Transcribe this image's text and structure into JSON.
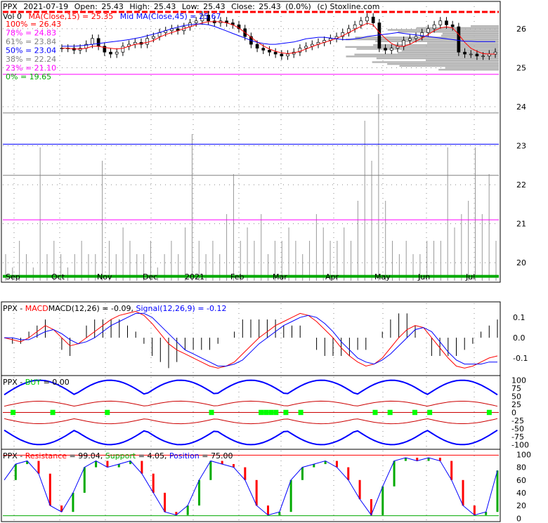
{
  "header": {
    "symbol": "PPX",
    "date": "2021-07-19",
    "open_label": "Open:",
    "open": "25.43",
    "high_label": "High:",
    "high": "25.43",
    "low_label": "Low:",
    "low": "25.43",
    "close_label": "Close:",
    "close": "25.43",
    "change": "(0.0%)",
    "copyright": "(c) Stoxline.com"
  },
  "legend": {
    "vol": "Vol 0",
    "ma_label": "MA(Close,15) = 25.35",
    "mid_ma_label": "Mid MA(Close,45) = 25.67"
  },
  "colors": {
    "background": "#ffffff",
    "price_candle": "#000000",
    "ma15": "#ff0000",
    "ma45": "#0000ff",
    "fib_100": "#ff0000",
    "fib_0": "#00aa00",
    "volume_profile": "#b4b4b4",
    "buy_signal": "#00ff00",
    "resistance": "#ff0000",
    "support": "#00aa00",
    "position": "#0000ff"
  },
  "chart_data": [
    {
      "type": "candlestick",
      "panel": "price",
      "ylim": [
        19.5,
        26.7
      ],
      "y_ticks": [
        20,
        21,
        22,
        23,
        24,
        25,
        26
      ],
      "x_tick_labels": [
        "Sep",
        "Oct",
        "Nov",
        "Dec",
        "2021",
        "Feb",
        "Mar",
        "Apr",
        "May",
        "Jun",
        "Jul"
      ],
      "fib_levels": [
        {
          "label": "100% = 26.43",
          "value": 26.43,
          "color": "#ff0000"
        },
        {
          "label": "78% = 24.83",
          "value": 24.83,
          "color": "#ff00ff"
        },
        {
          "label": "61% = 23.84",
          "value": 23.84,
          "color": "#808080"
        },
        {
          "label": "50% = 23.04",
          "value": 23.04,
          "color": "#0000ff"
        },
        {
          "label": "38% = 22.24",
          "value": 22.24,
          "color": "#808080"
        },
        {
          "label": "23% = 21.10",
          "value": 21.1,
          "color": "#ff00ff"
        },
        {
          "label": "0% = 19.65",
          "value": 19.65,
          "color": "#00aa00"
        }
      ],
      "close_series": [
        25.5,
        25.5,
        25.45,
        25.5,
        25.6,
        25.75,
        25.55,
        25.4,
        25.35,
        25.4,
        25.55,
        25.6,
        25.65,
        25.6,
        25.75,
        25.8,
        25.9,
        25.95,
        26.0,
        25.95,
        26.05,
        26.15,
        26.2,
        26.35,
        26.2,
        26.15,
        26.2,
        26.15,
        26.1,
        26.0,
        25.8,
        25.6,
        25.5,
        25.45,
        25.4,
        25.35,
        25.3,
        25.35,
        25.4,
        25.5,
        25.55,
        25.6,
        25.65,
        25.7,
        25.75,
        25.8,
        25.9,
        26.0,
        26.1,
        26.2,
        26.3,
        26.15,
        25.5,
        25.45,
        25.5,
        25.55,
        25.7,
        25.75,
        25.8,
        25.9,
        26.0,
        26.1,
        26.2,
        26.1,
        26.05,
        25.4,
        25.35,
        25.35,
        25.3,
        25.3,
        25.35,
        25.4
      ],
      "ma15_series": [
        25.5,
        25.5,
        25.48,
        25.48,
        25.5,
        25.55,
        25.55,
        25.52,
        25.5,
        25.48,
        25.5,
        25.55,
        25.6,
        25.62,
        25.65,
        25.7,
        25.78,
        25.85,
        25.9,
        25.95,
        26.0,
        26.05,
        26.1,
        26.15,
        26.18,
        26.18,
        26.18,
        26.15,
        26.1,
        26.02,
        25.9,
        25.78,
        25.66,
        25.56,
        25.48,
        25.42,
        25.38,
        25.36,
        25.38,
        25.42,
        25.48,
        25.54,
        25.6,
        25.65,
        25.7,
        25.75,
        25.82,
        25.9,
        25.98,
        26.06,
        26.14,
        26.1,
        25.9,
        25.75,
        25.62,
        25.55,
        25.55,
        25.6,
        25.68,
        25.76,
        25.85,
        25.95,
        26.02,
        26.05,
        26.02,
        25.85,
        25.65,
        25.5,
        25.42,
        25.36,
        25.35,
        25.35
      ],
      "ma45_series": [
        25.55,
        25.55,
        25.55,
        25.56,
        25.58,
        25.6,
        25.62,
        25.64,
        25.66,
        25.68,
        25.7,
        25.72,
        25.75,
        25.78,
        25.82,
        25.86,
        25.9,
        25.95,
        26.0,
        26.04,
        26.08,
        26.1,
        26.12,
        26.12,
        26.1,
        26.06,
        26.0,
        25.94,
        25.88,
        25.82,
        25.76,
        25.7,
        25.65,
        25.62,
        25.6,
        25.6,
        25.62,
        25.64,
        25.66,
        25.7,
        25.74,
        25.76,
        25.78,
        25.78,
        25.76,
        25.74,
        25.72,
        25.72,
        25.74,
        25.76,
        25.8,
        25.82,
        25.84,
        25.86,
        25.88,
        25.9,
        25.88,
        25.86,
        25.84,
        25.82,
        25.8,
        25.78,
        25.76,
        25.74,
        25.72,
        25.7,
        25.68,
        25.68,
        25.67,
        25.67,
        25.67,
        25.67
      ],
      "volume_series": [
        0.2,
        0.1,
        0.3,
        0.2,
        0.1,
        1.0,
        0.2,
        0.3,
        0.2,
        0.1,
        0.2,
        0.3,
        0.2,
        0.2,
        0.9,
        0.3,
        0.2,
        0.4,
        0.3,
        0.2,
        0.2,
        0.3,
        0.1,
        0.2,
        0.3,
        0.2,
        0.4,
        1.1,
        0.3,
        0.2,
        0.3,
        0.2,
        0.5,
        0.8,
        0.3,
        0.4,
        0.3,
        0.5,
        0.2,
        0.3,
        0.3,
        0.4,
        0.3,
        0.2,
        0.3,
        0.5,
        0.4,
        0.3,
        0.3,
        0.4,
        0.3,
        0.6,
        1.2,
        0.9,
        1.4,
        0.6,
        0.3,
        0.2,
        0.3,
        0.2,
        0.2,
        0.3,
        0.3,
        0.3,
        1.0,
        0.4,
        0.5,
        0.6,
        1.0,
        0.5,
        0.8,
        0.3
      ],
      "volume_profile_note": "horizontal grey bars near right edge, price band 25.2–26.4"
    },
    {
      "type": "line",
      "panel": "macd",
      "label": "PPX - MACDMACD(12,26) = -0.09, Signal(12,26,9) = -0.12",
      "ylim": [
        -0.18,
        0.17
      ],
      "y_ticks": [
        0.1,
        0.0,
        -0.1
      ],
      "macd_series": [
        0.0,
        -0.01,
        -0.02,
        0.0,
        0.03,
        0.06,
        0.04,
        0.0,
        -0.04,
        -0.03,
        0.0,
        0.03,
        0.06,
        0.09,
        0.11,
        0.12,
        0.13,
        0.11,
        0.07,
        0.02,
        -0.03,
        -0.06,
        -0.08,
        -0.1,
        -0.12,
        -0.14,
        -0.15,
        -0.14,
        -0.12,
        -0.08,
        -0.04,
        0.0,
        0.03,
        0.06,
        0.08,
        0.1,
        0.12,
        0.11,
        0.08,
        0.04,
        0.0,
        -0.05,
        -0.09,
        -0.12,
        -0.14,
        -0.13,
        -0.1,
        -0.05,
        0.0,
        0.04,
        0.06,
        0.05,
        0.0,
        -0.05,
        -0.1,
        -0.14,
        -0.15,
        -0.14,
        -0.12,
        -0.1,
        -0.09
      ],
      "signal_series": [
        0.0,
        0.0,
        -0.01,
        -0.01,
        0.01,
        0.03,
        0.04,
        0.02,
        -0.01,
        -0.03,
        -0.02,
        0.0,
        0.03,
        0.06,
        0.08,
        0.1,
        0.12,
        0.12,
        0.1,
        0.06,
        0.02,
        -0.02,
        -0.06,
        -0.08,
        -0.1,
        -0.12,
        -0.14,
        -0.14,
        -0.13,
        -0.11,
        -0.07,
        -0.03,
        0.0,
        0.03,
        0.06,
        0.08,
        0.1,
        0.11,
        0.1,
        0.07,
        0.03,
        -0.02,
        -0.06,
        -0.1,
        -0.12,
        -0.13,
        -0.11,
        -0.08,
        -0.04,
        0.0,
        0.04,
        0.05,
        0.03,
        -0.02,
        -0.07,
        -0.11,
        -0.13,
        -0.13,
        -0.13,
        -0.12,
        -0.12
      ]
    },
    {
      "type": "line",
      "panel": "buy",
      "label": "PPX - BUY = 0.00",
      "ylim": [
        -110,
        110
      ],
      "y_ticks": [
        100,
        75,
        50,
        25,
        0,
        -25,
        -50,
        -75,
        -100
      ],
      "buy_signal_positions": [
        0.02,
        0.1,
        0.21,
        0.42,
        0.52,
        0.53,
        0.54,
        0.55,
        0.57,
        0.6,
        0.75,
        0.78,
        0.83,
        0.86,
        0.98
      ]
    },
    {
      "type": "line",
      "panel": "position",
      "label": "PPX - Resistance = 99.04, Support = 4.05, Position = 75.00",
      "ylim": [
        -3,
        106
      ],
      "y_ticks": [
        100,
        80,
        60,
        40,
        20,
        0
      ],
      "position_series": [
        60,
        85,
        90,
        70,
        20,
        10,
        40,
        80,
        90,
        80,
        85,
        90,
        70,
        40,
        10,
        5,
        20,
        60,
        90,
        85,
        80,
        60,
        20,
        5,
        10,
        60,
        80,
        85,
        90,
        80,
        60,
        30,
        5,
        50,
        90,
        95,
        90,
        95,
        90,
        60,
        20,
        5,
        10,
        75
      ],
      "resistance_value": 99.04,
      "support_value": 4.05
    }
  ]
}
